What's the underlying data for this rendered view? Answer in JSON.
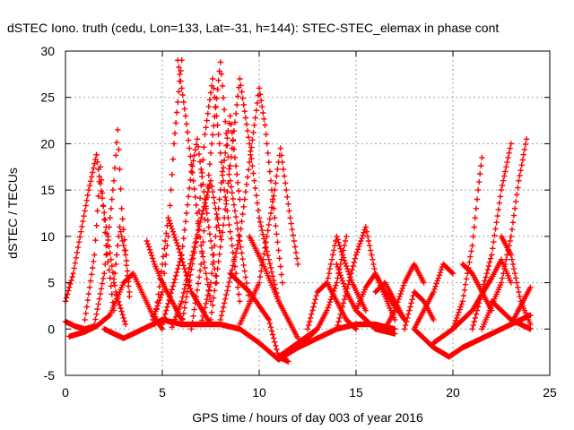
{
  "chart_data": {
    "type": "scatter",
    "title": "dSTEC Iono. truth (cedu, Lon=133, Lat=-31, h=144): STEC-STEC_elemax in phase cont",
    "xlabel": "GPS time / hours of day 003 of year 2016",
    "ylabel": "dSTEC  / TECUs",
    "xlim": [
      0,
      25
    ],
    "ylim": [
      -5,
      30
    ],
    "xticks": [
      0,
      5,
      10,
      15,
      20,
      25
    ],
    "yticks": [
      -5,
      0,
      5,
      10,
      15,
      20,
      25,
      30
    ],
    "grid": true,
    "marker": "+",
    "color": "#ff0000",
    "series": [
      {
        "x": [
          0.0,
          0.4,
          0.8,
          1.2,
          1.6
        ],
        "y": [
          3.0,
          6.0,
          10.5,
          15.0,
          18.8
        ]
      },
      {
        "x": [
          1.6,
          2.1,
          2.6,
          3.1
        ],
        "y": [
          18.8,
          11.0,
          4.0,
          0.5
        ]
      },
      {
        "x": [
          0.0,
          0.5,
          1.0,
          1.5
        ],
        "y": [
          0.8,
          0.3,
          0.0,
          0.3
        ]
      },
      {
        "x": [
          1.0,
          1.5,
          1.8,
          2.1,
          2.5
        ],
        "y": [
          1.0,
          8.0,
          17.5,
          9.0,
          2.0
        ]
      },
      {
        "x": [
          1.5,
          2.0,
          2.5,
          2.7,
          2.9,
          3.3
        ],
        "y": [
          0.5,
          6.0,
          16.0,
          21.5,
          13.0,
          4.0
        ]
      },
      {
        "x": [
          2.5,
          2.8,
          3.1,
          3.3
        ],
        "y": [
          5.0,
          11.0,
          8.0,
          3.5
        ]
      },
      {
        "x": [
          0.2,
          1.0,
          1.6,
          2.3,
          3.0,
          3.5,
          4.5,
          5.0
        ],
        "y": [
          -0.8,
          -0.3,
          0.3,
          1.5,
          5.0,
          6.0,
          1.5,
          0.0
        ]
      },
      {
        "x": [
          2.0,
          3.0,
          4.0,
          5.0,
          6.0
        ],
        "y": [
          0.0,
          -1.0,
          0.0,
          1.0,
          0.5
        ]
      },
      {
        "x": [
          4.2,
          4.6,
          5.0,
          6.0
        ],
        "y": [
          9.5,
          7.0,
          5.0,
          1.0
        ]
      },
      {
        "x": [
          4.6,
          5.0,
          5.3,
          5.8,
          6.5,
          7.5
        ],
        "y": [
          0.5,
          7.0,
          12.0,
          9.0,
          4.0,
          0.5
        ]
      },
      {
        "x": [
          4.5,
          5.0,
          5.3,
          5.6,
          6.0
        ],
        "y": [
          1.0,
          4.0,
          10.0,
          20.0,
          29.0
        ]
      },
      {
        "x": [
          5.8,
          6.2,
          6.6,
          7.0,
          7.5
        ],
        "y": [
          29.0,
          23.0,
          16.0,
          9.0,
          3.0
        ]
      },
      {
        "x": [
          5.0,
          6.0,
          6.5,
          6.8,
          7.2,
          7.8
        ],
        "y": [
          0.5,
          8.0,
          17.0,
          20.5,
          14.0,
          5.0
        ]
      },
      {
        "x": [
          5.5,
          6.0,
          7.0,
          7.5,
          8.0
        ],
        "y": [
          0.2,
          3.0,
          12.0,
          16.0,
          10.0
        ]
      },
      {
        "x": [
          6.0,
          6.8,
          7.2,
          7.6,
          8.2,
          9.0
        ],
        "y": [
          0.5,
          10.0,
          21.0,
          27.0,
          15.0,
          3.0
        ]
      },
      {
        "x": [
          6.5,
          7.0,
          7.5,
          8.0,
          8.5,
          9.5
        ],
        "y": [
          0.0,
          7.0,
          19.0,
          28.8,
          16.0,
          3.0
        ]
      },
      {
        "x": [
          7.0,
          7.5,
          8.0,
          8.5,
          9.0
        ],
        "y": [
          0.5,
          5.0,
          15.0,
          23.0,
          14.0
        ]
      },
      {
        "x": [
          7.5,
          8.2,
          9.0,
          9.5,
          10.0,
          11.0
        ],
        "y": [
          1.0,
          12.0,
          27.0,
          20.0,
          12.0,
          3.0
        ]
      },
      {
        "x": [
          8.0,
          9.0,
          10.0,
          10.3,
          10.8,
          11.2
        ],
        "y": [
          1.0,
          10.0,
          26.0,
          22.0,
          12.0,
          5.0
        ]
      },
      {
        "x": [
          9.0,
          10.0,
          10.8,
          11.1,
          11.6,
          12.0
        ],
        "y": [
          0.5,
          5.0,
          15.0,
          19.5,
          12.0,
          7.0
        ]
      },
      {
        "x": [
          8.5,
          9.5,
          10.5,
          11.0,
          11.5
        ],
        "y": [
          6.0,
          4.0,
          1.0,
          -3.0,
          -3.5
        ]
      },
      {
        "x": [
          6.0,
          8.0,
          9.0,
          10.0,
          11.0,
          12.0,
          13.0
        ],
        "y": [
          0.5,
          0.5,
          0.0,
          -1.5,
          -3.3,
          -2.0,
          0.0
        ]
      },
      {
        "x": [
          9.5,
          10.2,
          11.0,
          12.0
        ],
        "y": [
          10.0,
          7.0,
          3.0,
          -1.0
        ]
      },
      {
        "x": [
          11.0,
          12.0,
          13.0,
          13.5,
          14.0,
          14.5
        ],
        "y": [
          -3.0,
          -1.5,
          0.0,
          2.0,
          5.0,
          10.0
        ]
      },
      {
        "x": [
          12.5,
          13.0,
          13.5,
          14.0,
          14.5,
          15.0
        ],
        "y": [
          0.0,
          4.0,
          5.0,
          3.0,
          1.0,
          0.0
        ]
      },
      {
        "x": [
          13.5,
          14.0,
          14.3,
          14.8,
          15.5
        ],
        "y": [
          5.0,
          10.0,
          8.0,
          5.0,
          2.0
        ]
      },
      {
        "x": [
          14.0,
          14.5,
          15.0,
          15.5,
          16.0,
          17.0
        ],
        "y": [
          0.0,
          4.0,
          8.0,
          11.0,
          6.0,
          1.0
        ]
      },
      {
        "x": [
          14.0,
          14.5,
          15.0,
          16.0,
          17.0
        ],
        "y": [
          7.0,
          4.0,
          2.0,
          0.0,
          -0.5
        ]
      },
      {
        "x": [
          15.0,
          15.5,
          16.0,
          16.5,
          17.5
        ],
        "y": [
          2.0,
          4.5,
          6.0,
          4.0,
          1.0
        ]
      },
      {
        "x": [
          12.0,
          13.0,
          14.0,
          15.0,
          16.0,
          17.0
        ],
        "y": [
          -2.0,
          -1.0,
          0.0,
          0.5,
          0.5,
          0.0
        ]
      },
      {
        "x": [
          16.0,
          16.5,
          17.0,
          17.5
        ],
        "y": [
          4.0,
          5.0,
          3.0,
          1.0
        ]
      },
      {
        "x": [
          16.5,
          17.0,
          17.5,
          18.0,
          18.5
        ],
        "y": [
          0.0,
          2.0,
          5.0,
          7.0,
          5.0
        ]
      },
      {
        "x": [
          17.5,
          18.0,
          18.5,
          19.0
        ],
        "y": [
          0.0,
          4.0,
          3.0,
          1.0
        ]
      },
      {
        "x": [
          18.0,
          19.0,
          19.5,
          20.0
        ],
        "y": [
          0.0,
          4.0,
          7.0,
          6.0
        ]
      },
      {
        "x": [
          18.0,
          19.0,
          19.8,
          20.5,
          21.0
        ],
        "y": [
          0.0,
          -2.0,
          -3.0,
          -2.0,
          -1.5
        ]
      },
      {
        "x": [
          19.0,
          20.0,
          21.0,
          22.0,
          22.5,
          23.0
        ],
        "y": [
          -1.5,
          0.0,
          2.0,
          5.5,
          7.5,
          5.0
        ]
      },
      {
        "x": [
          20.0,
          20.5,
          21.0,
          21.3,
          21.5
        ],
        "y": [
          0.0,
          3.0,
          9.0,
          15.0,
          18.5
        ]
      },
      {
        "x": [
          20.5,
          21.0,
          21.5,
          22.0
        ],
        "y": [
          7.0,
          6.0,
          4.0,
          2.0
        ]
      },
      {
        "x": [
          20.5,
          21.5,
          22.5,
          23.5,
          24.0
        ],
        "y": [
          -2.0,
          -1.0,
          0.0,
          1.0,
          1.5
        ]
      },
      {
        "x": [
          21.0,
          22.0,
          22.5,
          23.0
        ],
        "y": [
          0.0,
          8.0,
          15.0,
          20.0
        ]
      },
      {
        "x": [
          22.5,
          23.0,
          23.5,
          24.0
        ],
        "y": [
          10.0,
          8.0,
          3.0,
          0.5
        ]
      },
      {
        "x": [
          21.5,
          22.5,
          23.0,
          23.4,
          23.8
        ],
        "y": [
          0.0,
          5.0,
          10.0,
          16.0,
          20.5
        ]
      },
      {
        "x": [
          23.0,
          23.5,
          24.0
        ],
        "y": [
          0.5,
          2.5,
          4.5
        ]
      },
      {
        "x": [
          22.0,
          23.0,
          23.5,
          24.0
        ],
        "y": [
          3.0,
          1.0,
          0.5,
          0.0
        ]
      }
    ]
  }
}
